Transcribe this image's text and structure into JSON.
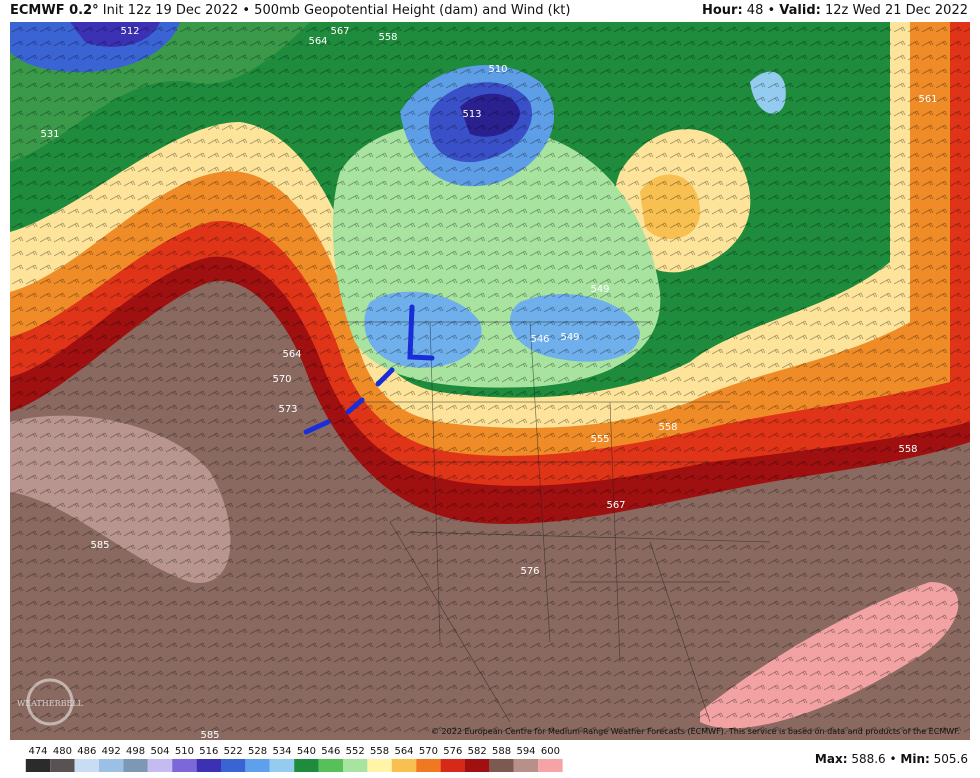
{
  "header": {
    "model": "ECMWF 0.2°",
    "description": "Init 12z 19 Dec 2022 • 500mb Geopotential Height (dam) and Wind (kt)",
    "hour_label": "Hour:",
    "hour": "48 •",
    "valid_label": "Valid:",
    "valid": "12z Wed 21 Dec 2022"
  },
  "map": {
    "copyright": "© 2022 European Centre for Medium-Range Weather Forecasts (ECMWF). This service is based on data and products of the ECMWF.",
    "watermark": "WEATHERBELL",
    "contour_labels": [
      512,
      564,
      567,
      558,
      510,
      513,
      531,
      549,
      564,
      570,
      573,
      546,
      549,
      555,
      558,
      567,
      576,
      585,
      585,
      561,
      558
    ]
  },
  "footer": {
    "max_label": "Max:",
    "max": "588.6 •",
    "min_label": "Min:",
    "min": "505.6"
  },
  "colorbar": {
    "labels": [
      474,
      480,
      486,
      492,
      498,
      504,
      510,
      516,
      522,
      528,
      534,
      540,
      546,
      552,
      558,
      564,
      570,
      576,
      582,
      588,
      594,
      600
    ],
    "colors": [
      "#2b2b2b",
      "#5a5252",
      "#c8dcf4",
      "#9cc0e4",
      "#7c98b4",
      "#c4bcf0",
      "#7c68d8",
      "#3c30b4",
      "#3a64d4",
      "#5ea0ec",
      "#94ccf0",
      "#1e8c3c",
      "#58c058",
      "#a8e4a0",
      "#fff4a8",
      "#f8c050",
      "#f07820",
      "#d82818",
      "#a01010",
      "#7c5a50",
      "#b8908a",
      "#f4a4a4"
    ]
  }
}
